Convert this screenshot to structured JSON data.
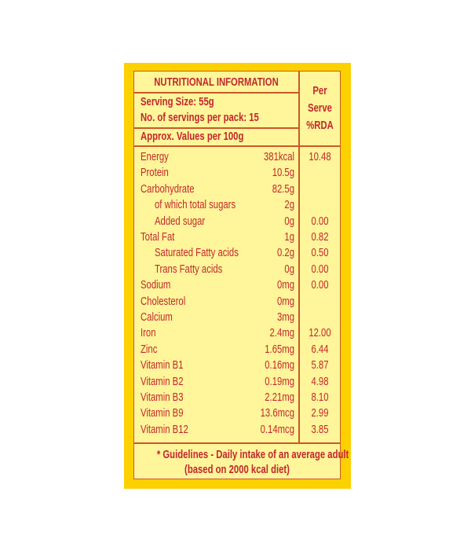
{
  "colors": {
    "outer": "#fdd000",
    "panel": "#fff59a",
    "text": "#c0272d",
    "rule": "#c9582a"
  },
  "header": {
    "title": "NUTRITIONAL INFORMATION",
    "serving_size": "Serving Size: 55g",
    "servings_per_pack": "No. of servings per pack: 15",
    "approx": "Approx. Values per 100g",
    "rda_col": [
      "Per",
      "Serve",
      "%RDA"
    ]
  },
  "rows": [
    {
      "name": "Energy",
      "value": "381kcal",
      "rda": "10.48",
      "indent": false
    },
    {
      "name": "Protein",
      "value": "10.5g",
      "rda": "",
      "indent": false
    },
    {
      "name": "Carbohydrate",
      "value": "82.5g",
      "rda": "",
      "indent": false
    },
    {
      "name": "of which total sugars",
      "value": "2g",
      "rda": "",
      "indent": true
    },
    {
      "name": "Added sugar",
      "value": "0g",
      "rda": "0.00",
      "indent": true
    },
    {
      "name": "Total Fat",
      "value": "1g",
      "rda": "0.82",
      "indent": false
    },
    {
      "name": "Saturated Fatty acids",
      "value": "0.2g",
      "rda": "0.50",
      "indent": true
    },
    {
      "name": "Trans Fatty acids",
      "value": "0g",
      "rda": "0.00",
      "indent": true
    },
    {
      "name": "Sodium",
      "value": "0mg",
      "rda": "0.00",
      "indent": false
    },
    {
      "name": "Cholesterol",
      "value": "0mg",
      "rda": "",
      "indent": false
    },
    {
      "name": "Calcium",
      "value": "3mg",
      "rda": "",
      "indent": false
    },
    {
      "name": "Iron",
      "value": "2.4mg",
      "rda": "12.00",
      "indent": false
    },
    {
      "name": "Zinc",
      "value": "1.65mg",
      "rda": "6.44",
      "indent": false
    },
    {
      "name": "Vitamin B1",
      "value": "0.16mg",
      "rda": "5.87",
      "indent": false
    },
    {
      "name": "Vitamin B2",
      "value": "0.19mg",
      "rda": "4.98",
      "indent": false
    },
    {
      "name": "Vitamin B3",
      "value": "2.21mg",
      "rda": "8.10",
      "indent": false
    },
    {
      "name": "Vitamin B9",
      "value": "13.6mcg",
      "rda": "2.99",
      "indent": false
    },
    {
      "name": "Vitamin B12",
      "value": "0.14mcg",
      "rda": "3.85",
      "indent": false
    }
  ],
  "footer": {
    "line1": "* Guidelines - Daily intake of an average adult",
    "line2": "(based on 2000 kcal diet)"
  }
}
